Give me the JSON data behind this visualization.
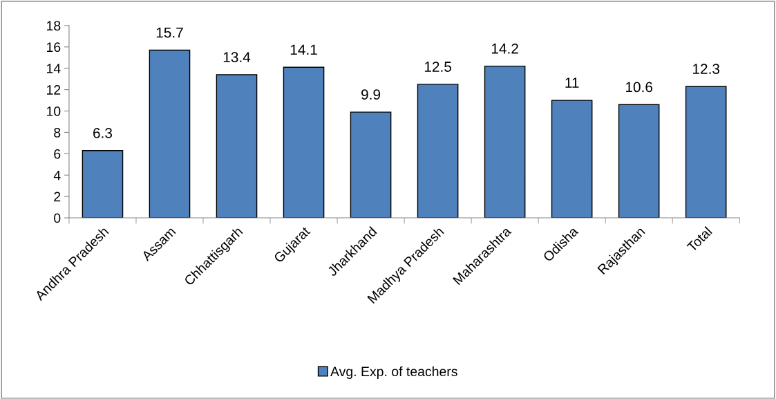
{
  "chart_data": {
    "type": "bar",
    "categories": [
      "Andhra Pradesh",
      "Assam",
      "Chhattisgarh",
      "Gujarat",
      "Jharkhand",
      "Madhya Pradesh",
      "Maharashtra",
      "Odisha",
      "Rajasthan",
      "Total"
    ],
    "series": [
      {
        "name": "Avg. Exp. of teachers",
        "color": "#4f81bd",
        "values": [
          6.3,
          15.7,
          13.4,
          14.1,
          9.9,
          12.5,
          14.2,
          11,
          10.6,
          12.3
        ]
      }
    ],
    "ylim": [
      0,
      18
    ],
    "yticks": [
      0,
      2,
      4,
      6,
      8,
      10,
      12,
      14,
      16,
      18
    ],
    "grid": false,
    "legend": "bottom",
    "data_labels": true
  }
}
